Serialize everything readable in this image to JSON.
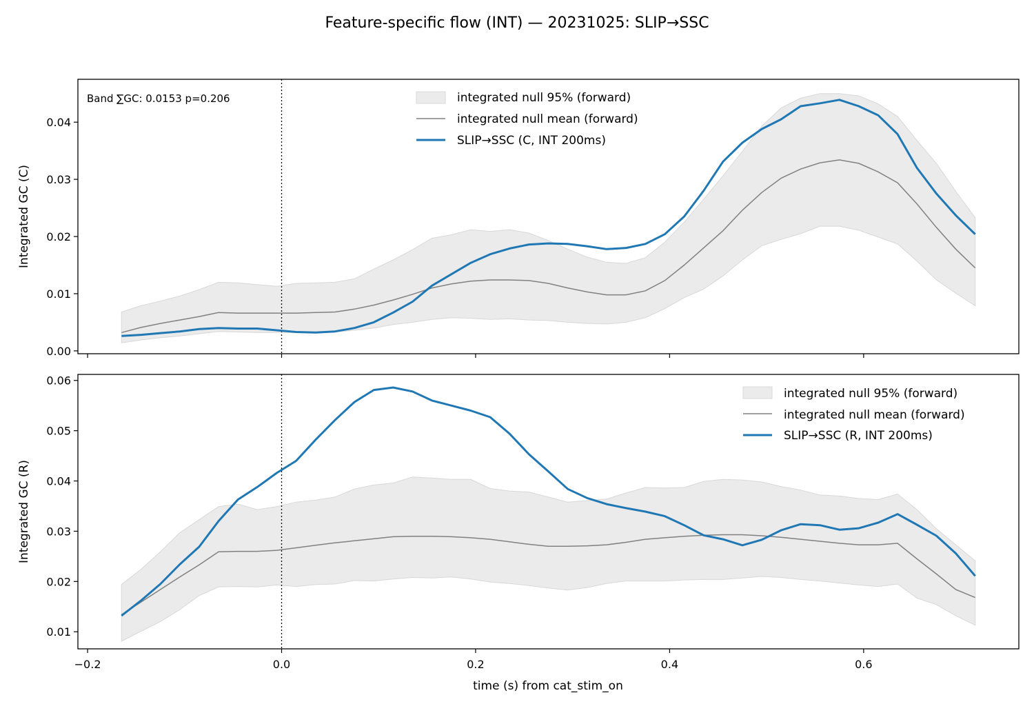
{
  "figure": {
    "title": "Feature-specific flow (INT) — 20231025: SLIP→SSC",
    "xlabel": "time (s) from cat_stim_on"
  },
  "colors": {
    "band": "#ebebeb",
    "band_edge": "#d8d8d8",
    "null_mean": "#808080",
    "series": "#1f77b4",
    "event_line": "#000000"
  },
  "chart_data": [
    {
      "type": "line",
      "panel": "top",
      "ylabel": "Integrated GC (C)",
      "annotation": "Band ∑GC: 0.0153  p=0.206",
      "legend_placement": "upper-center",
      "legend": [
        "integrated null 95% (forward)",
        "integrated null mean (forward)",
        "SLIP→SSC (C, INT 200ms)"
      ],
      "xlim": [
        -0.21,
        0.76
      ],
      "ylim": [
        -0.0005,
        0.0475
      ],
      "xticks": [
        -0.2,
        0.0,
        0.2,
        0.4,
        0.6
      ],
      "xtick_labels": [
        "",
        "",
        "",
        "",
        ""
      ],
      "yticks": [
        0.0,
        0.01,
        0.02,
        0.03,
        0.04
      ],
      "ytick_labels": [
        "0.00",
        "0.01",
        "0.02",
        "0.03",
        "0.04"
      ],
      "event_x": 0.0,
      "x": [
        -0.165,
        -0.145,
        -0.125,
        -0.105,
        -0.085,
        -0.065,
        -0.045,
        -0.025,
        -0.005,
        0.015,
        0.035,
        0.055,
        0.075,
        0.095,
        0.115,
        0.135,
        0.155,
        0.175,
        0.195,
        0.215,
        0.235,
        0.255,
        0.275,
        0.295,
        0.315,
        0.335,
        0.355,
        0.375,
        0.395,
        0.415,
        0.435,
        0.455,
        0.475,
        0.495,
        0.515,
        0.535,
        0.555,
        0.575,
        0.595,
        0.615,
        0.635,
        0.655,
        0.675,
        0.695,
        0.715
      ],
      "null_upper": [
        0.0068,
        0.0079,
        0.0087,
        0.0096,
        0.0107,
        0.012,
        0.0119,
        0.0116,
        0.0113,
        0.0118,
        0.0119,
        0.012,
        0.0126,
        0.0143,
        0.0159,
        0.0177,
        0.0197,
        0.0203,
        0.0212,
        0.0209,
        0.0212,
        0.0206,
        0.0193,
        0.0178,
        0.0164,
        0.0155,
        0.0153,
        0.0163,
        0.019,
        0.0225,
        0.0265,
        0.0306,
        0.0349,
        0.0393,
        0.0425,
        0.0442,
        0.045,
        0.045,
        0.0446,
        0.0432,
        0.041,
        0.0368,
        0.0328,
        0.0279,
        0.0233
      ],
      "null_mean": [
        0.0032,
        0.0041,
        0.0048,
        0.0054,
        0.006,
        0.0067,
        0.0066,
        0.0066,
        0.0066,
        0.0066,
        0.0067,
        0.0068,
        0.0073,
        0.008,
        0.0089,
        0.0099,
        0.011,
        0.0117,
        0.0122,
        0.0124,
        0.0124,
        0.0123,
        0.0118,
        0.011,
        0.0103,
        0.0098,
        0.0098,
        0.0105,
        0.0123,
        0.015,
        0.018,
        0.021,
        0.0246,
        0.0277,
        0.0302,
        0.0318,
        0.0329,
        0.0334,
        0.0328,
        0.0313,
        0.0294,
        0.0257,
        0.0216,
        0.0178,
        0.0145
      ],
      "null_lower": [
        0.0014,
        0.0019,
        0.0023,
        0.0026,
        0.003,
        0.0034,
        0.0033,
        0.0032,
        0.0032,
        0.0032,
        0.0032,
        0.0033,
        0.0036,
        0.004,
        0.0046,
        0.005,
        0.0055,
        0.0058,
        0.0057,
        0.0055,
        0.0056,
        0.0054,
        0.0053,
        0.005,
        0.0048,
        0.0047,
        0.005,
        0.0058,
        0.0074,
        0.0093,
        0.0108,
        0.0131,
        0.0159,
        0.0184,
        0.0195,
        0.0205,
        0.0218,
        0.0218,
        0.0211,
        0.0199,
        0.0187,
        0.0157,
        0.0124,
        0.0101,
        0.0079
      ],
      "series": [
        {
          "name": "SLIP→SSC (C, INT 200ms)",
          "values": [
            0.0026,
            0.0028,
            0.0031,
            0.0034,
            0.0038,
            0.004,
            0.0039,
            0.0039,
            0.0036,
            0.0033,
            0.0032,
            0.0034,
            0.004,
            0.005,
            0.0067,
            0.0086,
            0.0114,
            0.0134,
            0.0154,
            0.0169,
            0.0179,
            0.0186,
            0.0188,
            0.0187,
            0.0183,
            0.0178,
            0.018,
            0.0187,
            0.0204,
            0.0235,
            0.028,
            0.0331,
            0.0364,
            0.0388,
            0.0405,
            0.0428,
            0.0433,
            0.0439,
            0.0428,
            0.0412,
            0.0379,
            0.032,
            0.0275,
            0.0237,
            0.0204
          ]
        }
      ]
    },
    {
      "type": "line",
      "panel": "bottom",
      "ylabel": "Integrated GC (R)",
      "legend_placement": "upper-right",
      "legend": [
        "integrated null 95% (forward)",
        "integrated null mean (forward)",
        "SLIP→SSC (R, INT 200ms)"
      ],
      "xlim": [
        -0.21,
        0.76
      ],
      "ylim": [
        0.0066,
        0.0612
      ],
      "xticks": [
        -0.2,
        0.0,
        0.2,
        0.4,
        0.6
      ],
      "xtick_labels": [
        "−0.2",
        "0.0",
        "0.2",
        "0.4",
        "0.6"
      ],
      "yticks": [
        0.01,
        0.02,
        0.03,
        0.04,
        0.05,
        0.06
      ],
      "ytick_labels": [
        "0.01",
        "0.02",
        "0.03",
        "0.04",
        "0.05",
        "0.06"
      ],
      "event_x": 0.0,
      "x": [
        -0.165,
        -0.145,
        -0.125,
        -0.105,
        -0.085,
        -0.065,
        -0.045,
        -0.025,
        -0.005,
        0.015,
        0.035,
        0.055,
        0.075,
        0.095,
        0.115,
        0.135,
        0.155,
        0.175,
        0.195,
        0.215,
        0.235,
        0.255,
        0.275,
        0.295,
        0.315,
        0.335,
        0.355,
        0.375,
        0.395,
        0.415,
        0.435,
        0.455,
        0.475,
        0.495,
        0.515,
        0.535,
        0.555,
        0.575,
        0.595,
        0.615,
        0.635,
        0.655,
        0.675,
        0.695,
        0.715
      ],
      "null_upper": [
        0.0194,
        0.0224,
        0.0259,
        0.0297,
        0.0323,
        0.0349,
        0.0354,
        0.0343,
        0.0349,
        0.0358,
        0.0362,
        0.0368,
        0.0384,
        0.0392,
        0.0396,
        0.0408,
        0.0406,
        0.0403,
        0.0403,
        0.0385,
        0.038,
        0.0378,
        0.0368,
        0.0358,
        0.0361,
        0.0364,
        0.0376,
        0.0387,
        0.0386,
        0.0387,
        0.0399,
        0.0403,
        0.0402,
        0.0398,
        0.0389,
        0.0382,
        0.0372,
        0.037,
        0.0365,
        0.0363,
        0.0374,
        0.0343,
        0.0305,
        0.0273,
        0.0241
      ],
      "null_mean": [
        0.0134,
        0.0159,
        0.0184,
        0.0209,
        0.0233,
        0.0259,
        0.026,
        0.026,
        0.0262,
        0.0267,
        0.0272,
        0.0277,
        0.0281,
        0.0285,
        0.0289,
        0.029,
        0.029,
        0.0289,
        0.0287,
        0.0284,
        0.0279,
        0.0274,
        0.027,
        0.027,
        0.0271,
        0.0273,
        0.0278,
        0.0284,
        0.0287,
        0.029,
        0.0292,
        0.0293,
        0.0293,
        0.0291,
        0.0288,
        0.0284,
        0.028,
        0.0276,
        0.0273,
        0.0273,
        0.0276,
        0.0245,
        0.0215,
        0.0184,
        0.0168
      ],
      "null_lower": [
        0.0081,
        0.0101,
        0.012,
        0.0144,
        0.0172,
        0.0189,
        0.019,
        0.0189,
        0.0193,
        0.019,
        0.0194,
        0.0195,
        0.0202,
        0.0201,
        0.0205,
        0.0208,
        0.0207,
        0.0209,
        0.0205,
        0.0199,
        0.0196,
        0.0192,
        0.0187,
        0.0183,
        0.0188,
        0.0196,
        0.0201,
        0.0201,
        0.0201,
        0.0203,
        0.0204,
        0.0204,
        0.0207,
        0.021,
        0.0208,
        0.0204,
        0.0201,
        0.0197,
        0.0193,
        0.019,
        0.0195,
        0.0167,
        0.0154,
        0.0132,
        0.0113
      ],
      "series": [
        {
          "name": "SLIP→SSC (R, INT 200ms)",
          "values": [
            0.0132,
            0.0162,
            0.0195,
            0.0234,
            0.0269,
            0.032,
            0.0363,
            0.0388,
            0.0416,
            0.044,
            0.0482,
            0.0521,
            0.0557,
            0.0581,
            0.0586,
            0.0578,
            0.056,
            0.055,
            0.054,
            0.0527,
            0.0494,
            0.0453,
            0.0419,
            0.0384,
            0.0366,
            0.0354,
            0.0346,
            0.0339,
            0.033,
            0.0312,
            0.0292,
            0.0284,
            0.0272,
            0.0283,
            0.0302,
            0.0314,
            0.0312,
            0.0303,
            0.0306,
            0.0317,
            0.0334,
            0.0313,
            0.0291,
            0.0256,
            0.0211
          ]
        }
      ]
    }
  ]
}
